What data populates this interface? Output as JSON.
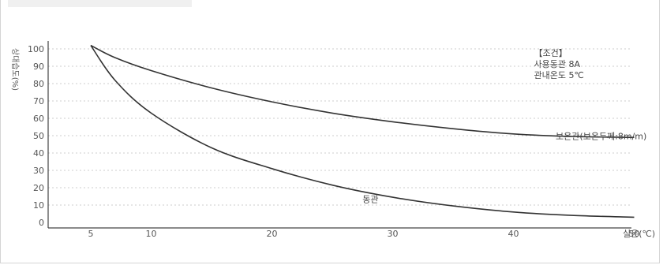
{
  "chart_data": {
    "type": "line",
    "xlabel": "실온(℃)",
    "ylabel": "상대습도(%)",
    "xlim": [
      0,
      52
    ],
    "ylim": [
      0,
      100
    ],
    "x_ticks": [
      5,
      10,
      20,
      30,
      40,
      50
    ],
    "y_ticks": [
      0,
      10,
      20,
      30,
      40,
      50,
      60,
      70,
      80,
      90,
      100
    ],
    "grid": true,
    "series": [
      {
        "name": "보온관(보온두께:8m/m)",
        "x": [
          5,
          7,
          10,
          15,
          20,
          25,
          30,
          35,
          40,
          45,
          50
        ],
        "y": [
          102,
          95,
          87.5,
          77.5,
          69.5,
          63,
          58,
          54,
          51,
          49.5,
          49
        ],
        "label_at": [
          43.5,
          48
        ]
      },
      {
        "name": "동관",
        "x": [
          5,
          7,
          10,
          15,
          20,
          25,
          30,
          35,
          40,
          45,
          50
        ],
        "y": [
          102,
          82,
          63,
          43,
          31,
          21.5,
          14.5,
          9.5,
          6,
          4,
          3
        ],
        "label_at": [
          27.5,
          11.5
        ]
      }
    ],
    "annotation": {
      "lines": [
        "【조건】",
        "사용동관 8A",
        "관내온도 5℃"
      ],
      "at": [
        41.7,
        96
      ]
    }
  }
}
